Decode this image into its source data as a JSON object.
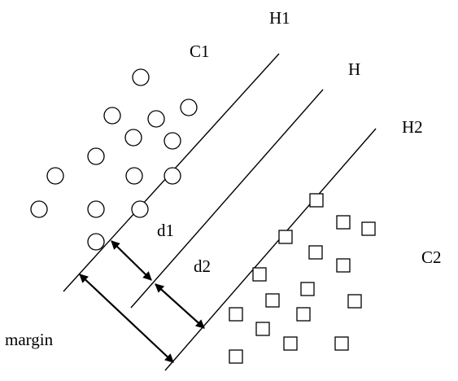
{
  "labels": {
    "h1": "H1",
    "h": "H",
    "h2": "H2",
    "c1": "C1",
    "c2": "C2",
    "d1": "d1",
    "d2": "d2",
    "margin": "margin"
  },
  "class_c1": {
    "marker": "circle",
    "count": 14
  },
  "class_c2": {
    "marker": "square",
    "count": 18
  },
  "colors": {
    "stroke": "#000000",
    "background": "#ffffff"
  }
}
